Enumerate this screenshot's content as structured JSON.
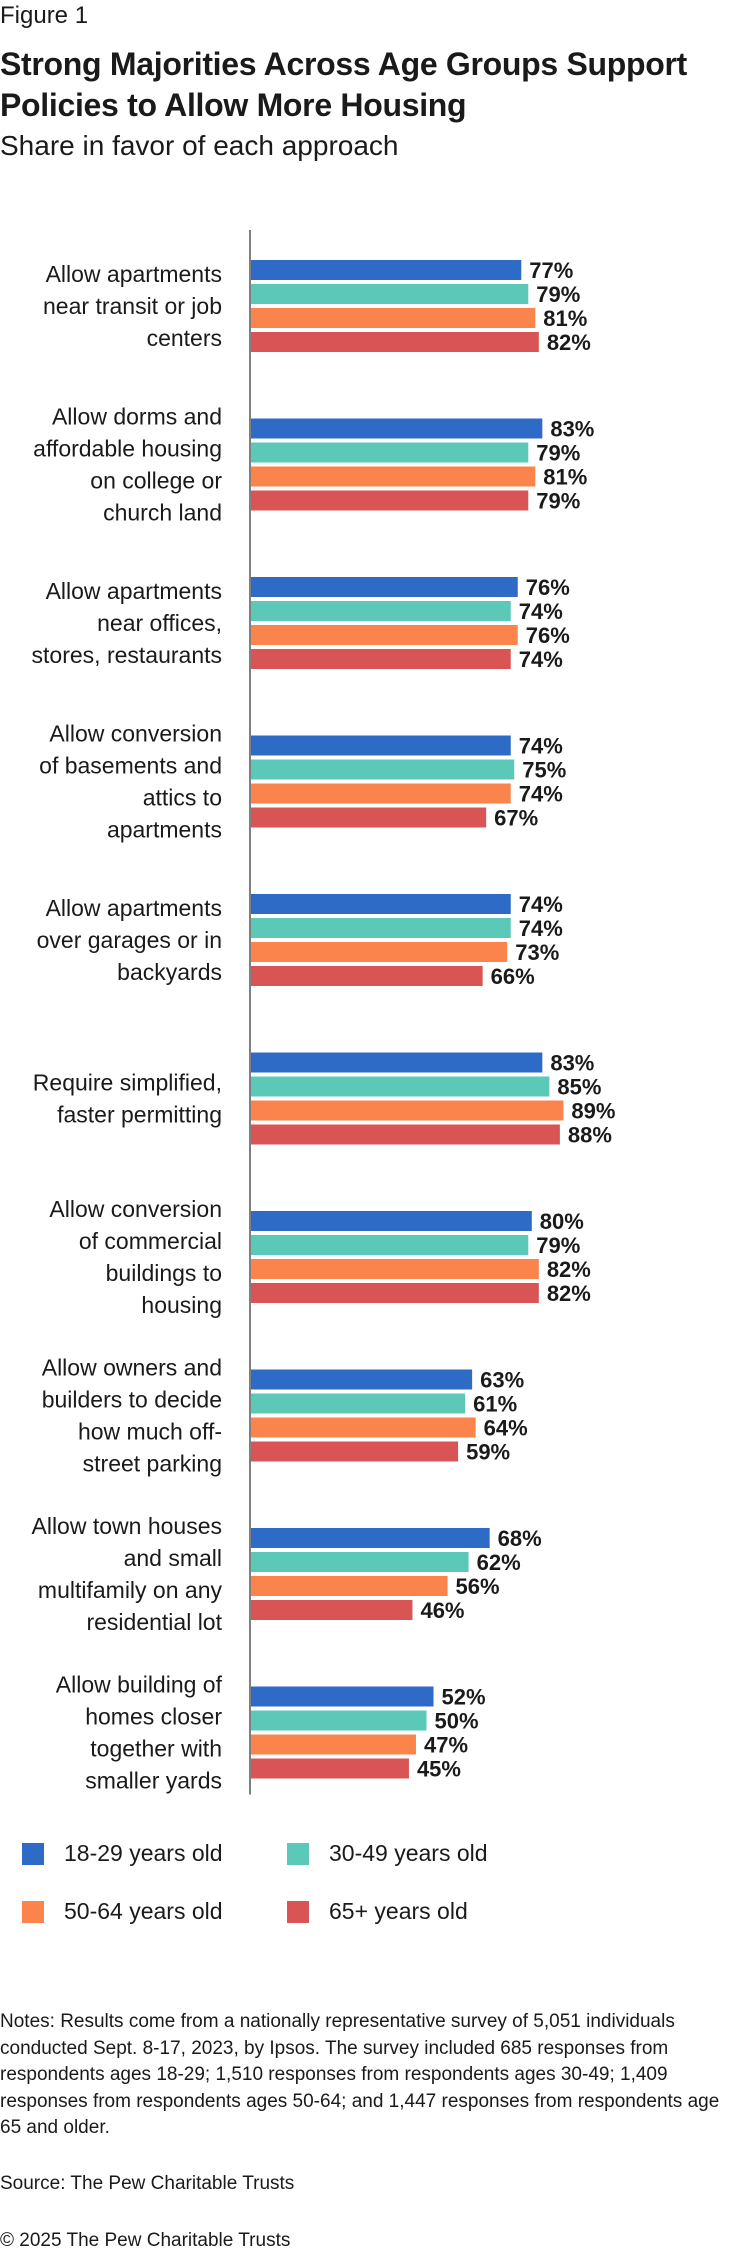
{
  "figure_label": "Figure 1",
  "title": "Strong Majorities Across Age Groups Support Policies to Allow More Housing",
  "subtitle": "Share in favor of each approach",
  "chart_data": {
    "type": "bar",
    "orientation": "horizontal",
    "categories": [
      [
        "Allow apartments",
        "near transit or job",
        "centers"
      ],
      [
        "Allow dorms and",
        "affordable housing",
        "on college or",
        "church land"
      ],
      [
        "Allow apartments",
        "near offices,",
        "stores, restaurants"
      ],
      [
        "Allow conversion",
        "of basements and",
        "attics to",
        "apartments"
      ],
      [
        "Allow apartments",
        "over garages or in",
        "backyards"
      ],
      [
        "Require simplified,",
        "faster permitting"
      ],
      [
        "Allow conversion",
        "of commercial",
        "buildings to",
        "housing"
      ],
      [
        "Allow owners and",
        "builders to decide",
        "how much off-",
        "street parking"
      ],
      [
        "Allow town houses",
        "and small",
        "multifamily on any",
        "residential lot"
      ],
      [
        "Allow building of",
        "homes closer",
        "together with",
        "smaller yards"
      ]
    ],
    "series": [
      {
        "name": "18-29 years old",
        "color": "#2e6bc6",
        "values": [
          77,
          83,
          76,
          74,
          74,
          83,
          80,
          63,
          68,
          52
        ]
      },
      {
        "name": "30-49 years old",
        "color": "#5bc8b8",
        "values": [
          79,
          79,
          74,
          75,
          74,
          85,
          79,
          61,
          62,
          50
        ]
      },
      {
        "name": "50-64 years old",
        "color": "#fa844c",
        "values": [
          81,
          81,
          76,
          74,
          73,
          89,
          82,
          64,
          56,
          47
        ]
      },
      {
        "name": "65+ years old",
        "color": "#d95555",
        "values": [
          82,
          79,
          74,
          67,
          66,
          88,
          82,
          59,
          46,
          45
        ]
      }
    ],
    "value_suffix": "%",
    "xlim": [
      0,
      100
    ],
    "grid": false,
    "legend_position": "bottom"
  },
  "notes": "Notes: Results come from a nationally representative survey of 5,051 individuals conducted Sept. 8-17, 2023, by Ipsos. The survey included 685 responses from respondents ages 18-29; 1,510 responses from respondents ages 30-49; 1,409 responses from respondents ages 50-64; and 1,447 responses from respondents age 65 and older.",
  "source": "Source: The Pew Charitable Trusts",
  "copyright": "© 2025 The Pew Charitable Trusts"
}
